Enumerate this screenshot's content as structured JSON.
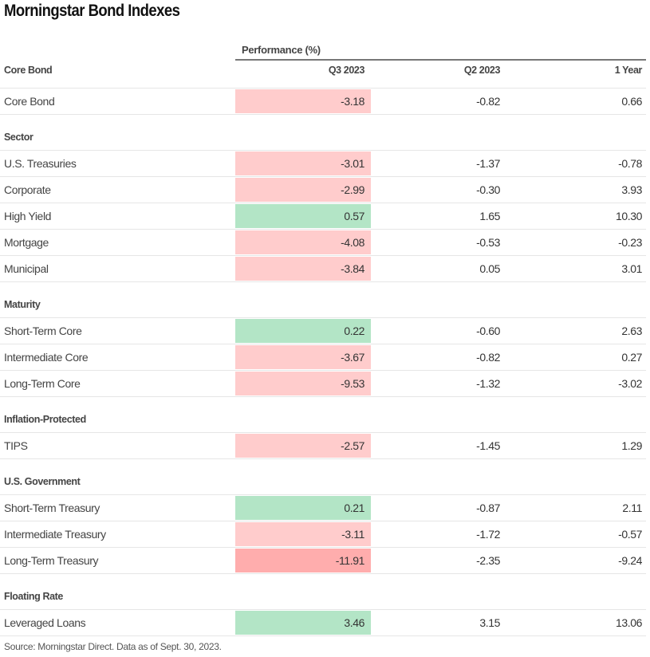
{
  "title": "Morningstar Bond Indexes",
  "group_header": "Performance (%)",
  "source": "Source: Morningstar Direct. Data as of Sept. 30, 2023.",
  "colors": {
    "negative": "#ffcccc",
    "strong_negative": "#ffadad",
    "positive": "#b3e5c6"
  },
  "chart_data": {
    "type": "table",
    "title": "Morningstar Bond Indexes",
    "columns": [
      "Q3 2023",
      "Q2 2023",
      "1 Year"
    ],
    "first_header": "Core Bond",
    "sections": [
      {
        "name": "Core Bond",
        "rows": [
          {
            "label": "Core Bond",
            "values": [
              "-3.18",
              "-0.82",
              "0.66"
            ]
          }
        ]
      },
      {
        "name": "Sector",
        "rows": [
          {
            "label": "U.S. Treasuries",
            "values": [
              "-3.01",
              "-1.37",
              "-0.78"
            ]
          },
          {
            "label": "Corporate",
            "values": [
              "-2.99",
              "-0.30",
              "3.93"
            ]
          },
          {
            "label": "High Yield",
            "values": [
              "0.57",
              "1.65",
              "10.30"
            ]
          },
          {
            "label": "Mortgage",
            "values": [
              "-4.08",
              "-0.53",
              "-0.23"
            ]
          },
          {
            "label": "Municipal",
            "values": [
              "-3.84",
              "0.05",
              "3.01"
            ]
          }
        ]
      },
      {
        "name": "Maturity",
        "rows": [
          {
            "label": "Short-Term Core",
            "values": [
              "0.22",
              "-0.60",
              "2.63"
            ]
          },
          {
            "label": "Intermediate Core",
            "values": [
              "-3.67",
              "-0.82",
              "0.27"
            ]
          },
          {
            "label": "Long-Term Core",
            "values": [
              "-9.53",
              "-1.32",
              "-3.02"
            ]
          }
        ]
      },
      {
        "name": "Inflation-Protected",
        "rows": [
          {
            "label": "TIPS",
            "values": [
              "-2.57",
              "-1.45",
              "1.29"
            ]
          }
        ]
      },
      {
        "name": "U.S. Government",
        "rows": [
          {
            "label": "Short-Term Treasury",
            "values": [
              "0.21",
              "-0.87",
              "2.11"
            ]
          },
          {
            "label": "Intermediate Treasury",
            "values": [
              "-3.11",
              "-1.72",
              "-0.57"
            ]
          },
          {
            "label": "Long-Term Treasury",
            "values": [
              "-11.91",
              "-2.35",
              "-9.24"
            ]
          }
        ]
      },
      {
        "name": "Floating Rate",
        "rows": [
          {
            "label": "Leveraged Loans",
            "values": [
              "3.46",
              "3.15",
              "13.06"
            ]
          }
        ]
      }
    ]
  }
}
